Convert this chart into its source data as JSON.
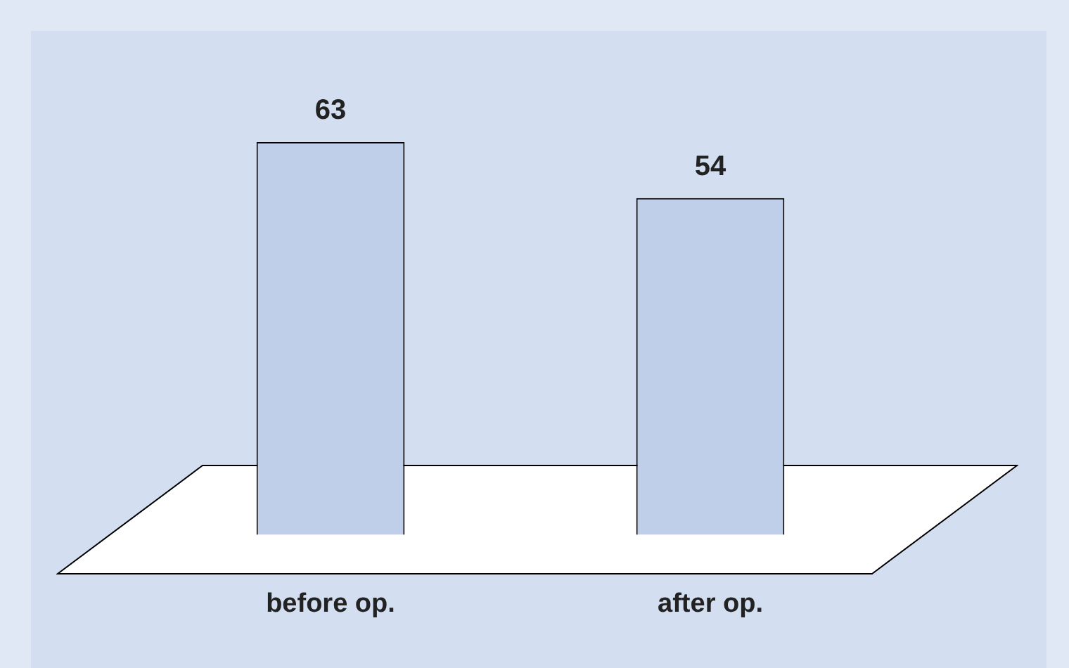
{
  "chart_data": {
    "type": "bar",
    "categories": [
      "before op.",
      "after op."
    ],
    "values": [
      63,
      54
    ],
    "color": "#bfcfea",
    "data_labels": true
  }
}
